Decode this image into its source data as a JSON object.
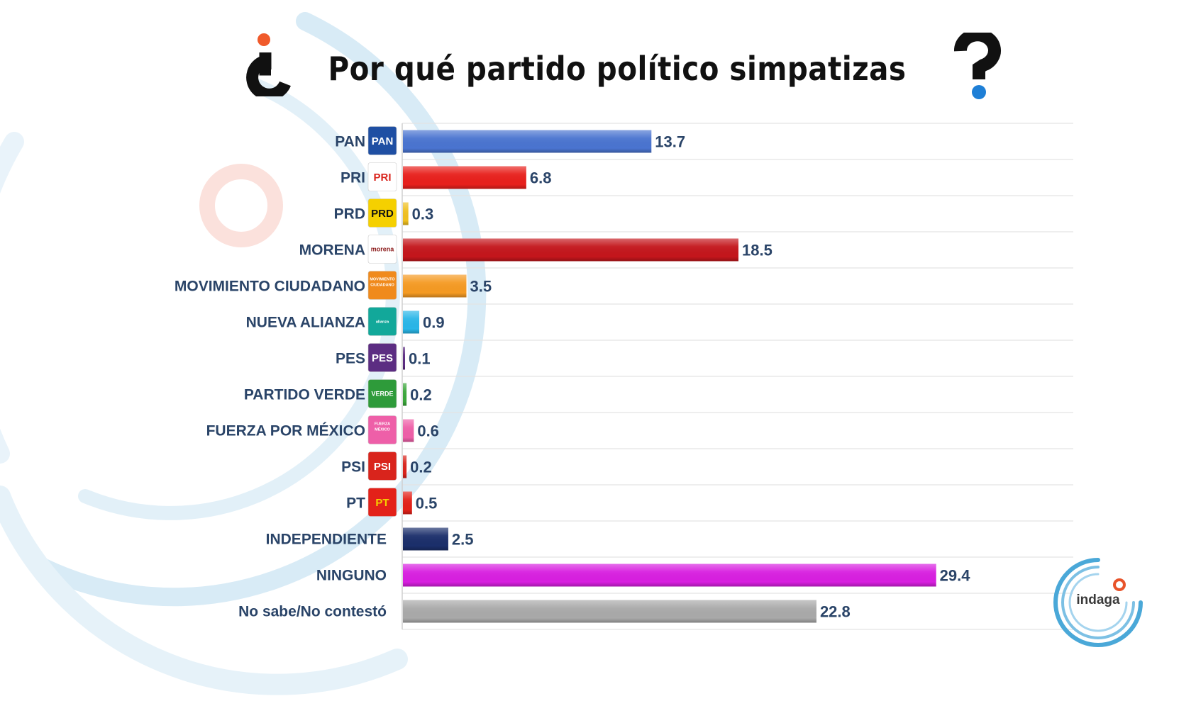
{
  "header": {
    "title": "Por qué partido político simpatizas"
  },
  "chart_data": {
    "type": "bar",
    "orientation": "horizontal",
    "title": "Por qué partido político simpatizas",
    "xlabel": "",
    "ylabel": "",
    "xlim": [
      0,
      37
    ],
    "grid": "horizontal separators",
    "categories": [
      "PAN",
      "PRI",
      "PRD",
      "MORENA",
      "MOVIMIENTO CIUDADANO",
      "NUEVA ALIANZA",
      "PES",
      "PARTIDO VERDE",
      "FUERZA POR MÉXICO",
      "PSI",
      "PT",
      "INDEPENDIENTE",
      "NINGUNO",
      "No sabe/No contestó"
    ],
    "values": [
      13.7,
      6.8,
      0.3,
      18.5,
      3.5,
      0.9,
      0.1,
      0.2,
      0.6,
      0.2,
      0.5,
      2.5,
      29.4,
      22.8
    ],
    "value_labels": [
      "13.7",
      "6.8",
      "0.3",
      "18.5",
      "3.5",
      "0.9",
      "0.1",
      "0.2",
      "0.6",
      "0.2",
      "0.5",
      "2.5",
      "29.4",
      "22.8"
    ],
    "colors": [
      "#4a74d0",
      "#e8201c",
      "#f0c020",
      "#c4161c",
      "#f59a23",
      "#29b6e8",
      "#5c2d82",
      "#3aa63a",
      "#ee5fa8",
      "#d9241c",
      "#e32119",
      "#1b2f6b",
      "#d81fe0",
      "#a9a9a9"
    ]
  },
  "logos": [
    {
      "icon": "pan-logo-icon",
      "text": "PAN",
      "bg": "#1f4fa3",
      "fg": "#ffffff"
    },
    {
      "icon": "pri-logo-icon",
      "text": "PRI",
      "bg": "#ffffff",
      "fg": "#d9241c"
    },
    {
      "icon": "prd-logo-icon",
      "text": "PRD",
      "bg": "#f5d000",
      "fg": "#111111"
    },
    {
      "icon": "morena-logo-icon",
      "text": "morena",
      "bg": "#ffffff",
      "fg": "#8b1a1a"
    },
    {
      "icon": "mc-logo-icon",
      "text": "MOVIMIENTO CIUDADANO",
      "bg": "#f08a1c",
      "fg": "#ffffff"
    },
    {
      "icon": "nueva-alianza-logo-icon",
      "text": "alianza",
      "bg": "#12a89a",
      "fg": "#ffffff"
    },
    {
      "icon": "pes-logo-icon",
      "text": "PES",
      "bg": "#5c2d82",
      "fg": "#ffffff"
    },
    {
      "icon": "verde-logo-icon",
      "text": "VERDE",
      "bg": "#2e9b3a",
      "fg": "#ffffff"
    },
    {
      "icon": "fuerza-mexico-logo-icon",
      "text": "FUERZA MÉXICO",
      "bg": "#ee5fa8",
      "fg": "#ffffff"
    },
    {
      "icon": "psi-logo-icon",
      "text": "PSI",
      "bg": "#d9241c",
      "fg": "#ffffff"
    },
    {
      "icon": "pt-logo-icon",
      "text": "PT",
      "bg": "#e32119",
      "fg": "#f5d000"
    }
  ],
  "watermark": {
    "text": "indaga",
    "accent": "#e8532a",
    "ring": "#4aa8d8"
  }
}
